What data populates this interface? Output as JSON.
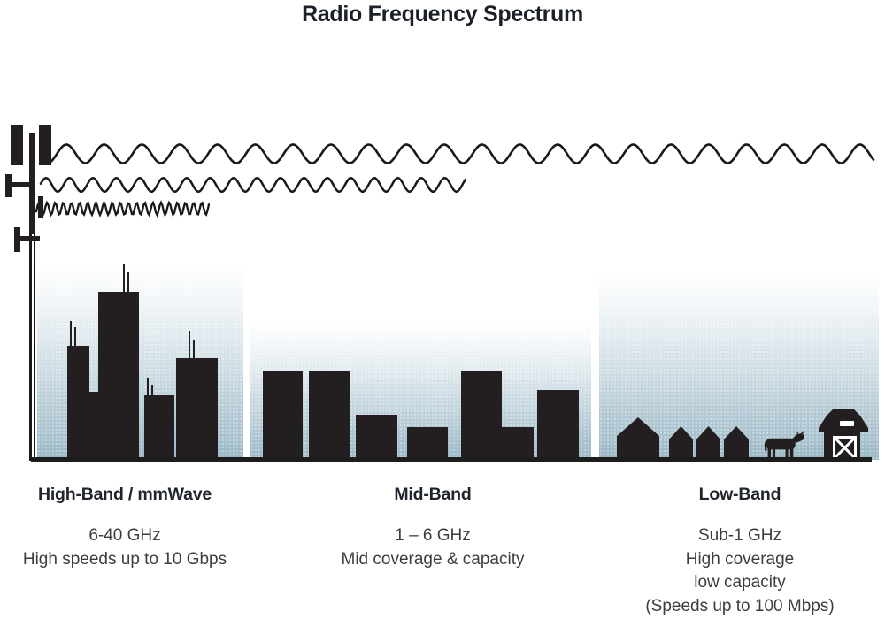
{
  "title": "Radio Frequency Spectrum",
  "colors": {
    "ink": "#231f20",
    "heading_text": "#20242c",
    "body_text": "#3d3d3d",
    "sky_top": "#ffffff",
    "sky_bottom": "#9cb9c6",
    "baseline": "#1d1d1d"
  },
  "icons": {
    "tower": "cell-tower-icon",
    "wave_long": "long-wavelength-wave-icon",
    "wave_medium": "medium-wavelength-wave-icon",
    "wave_short": "short-wavelength-wave-icon",
    "high_scene": "city-skyline-icon",
    "mid_scene": "midrise-buildings-icon",
    "low_scene": "rural-houses-icon",
    "cow": "cow-icon",
    "barn": "barn-icon"
  },
  "bands": [
    {
      "id": "high",
      "heading": "High-Band / mmWave",
      "lines": [
        "6-40 GHz",
        "High speeds up to 10 Gbps"
      ]
    },
    {
      "id": "mid",
      "heading": "Mid-Band",
      "lines": [
        "1 – 6 GHz",
        "Mid coverage & capacity"
      ]
    },
    {
      "id": "low",
      "heading": "Low-Band",
      "lines": [
        "Sub-1 GHz",
        "High coverage",
        "low capacity",
        "(Speeds up to 100 Mbps)"
      ]
    }
  ]
}
